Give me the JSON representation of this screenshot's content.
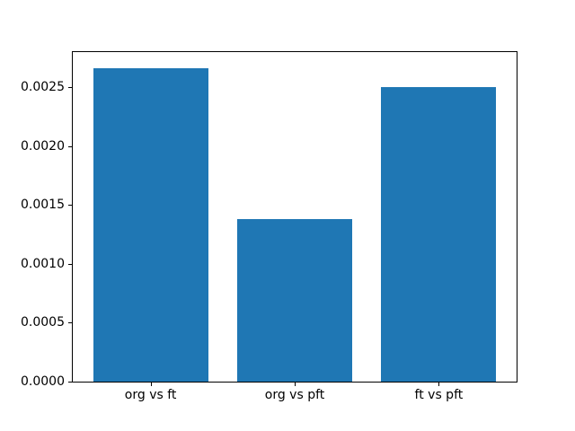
{
  "figure": {
    "background": "#ffffff",
    "bar_color": "#1f77b4",
    "spine_color": "#000000",
    "tick_color": "#000000"
  },
  "chart_data": {
    "type": "bar",
    "title": "",
    "xlabel": "",
    "ylabel": "",
    "categories": [
      "org vs ft",
      "org vs pft",
      "ft vs pft"
    ],
    "values": [
      0.00266,
      0.00138,
      0.0025
    ],
    "ylim": [
      0,
      0.002797
    ],
    "xlim": [
      -0.54,
      2.54
    ],
    "yticks": [
      0.0,
      0.0005,
      0.001,
      0.0015,
      0.002,
      0.0025
    ],
    "ytick_labels": [
      "0.0000",
      "0.0005",
      "0.0010",
      "0.0015",
      "0.0020",
      "0.0025"
    ],
    "bar_width": 0.8,
    "grid": false,
    "legend": null
  }
}
